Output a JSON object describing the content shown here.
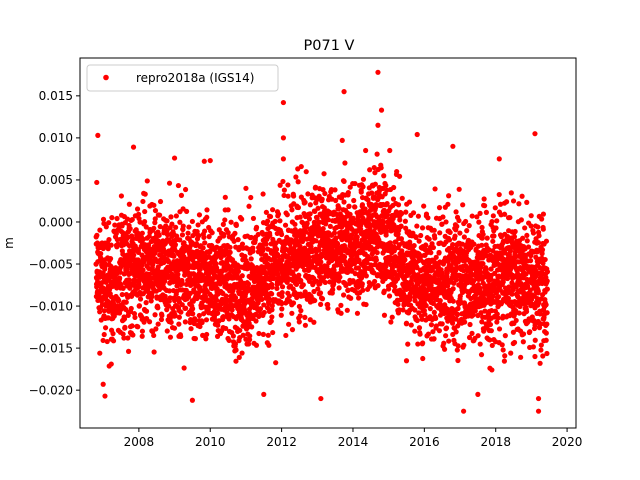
{
  "chart_data": {
    "type": "scatter",
    "title": "P071 V",
    "xlabel": "",
    "ylabel": "m",
    "xlim": [
      2006.35,
      2020.25
    ],
    "ylim": [
      -0.0245,
      0.0195
    ],
    "x_ticks": [
      2008,
      2010,
      2012,
      2014,
      2016,
      2018,
      2020
    ],
    "x_tick_labels": [
      "2008",
      "2010",
      "2012",
      "2014",
      "2016",
      "2018",
      "2020"
    ],
    "y_ticks": [
      -0.02,
      -0.015,
      -0.01,
      -0.005,
      0.0,
      0.005,
      0.01,
      0.015
    ],
    "y_tick_labels": [
      "−0.020",
      "−0.015",
      "−0.010",
      "−0.005",
      "0.000",
      "0.005",
      "0.010",
      "0.015"
    ],
    "grid": false,
    "legend_position": "top-left",
    "series": [
      {
        "name": "repro2018a (IGS14)",
        "color": "#ff0000",
        "marker": "circle",
        "points_are_approximate": true,
        "x_range": [
          2006.8,
          2019.45
        ],
        "baseline_by_year": [
          [
            2006.8,
            -0.007
          ],
          [
            2008.0,
            -0.006
          ],
          [
            2009.0,
            -0.0055
          ],
          [
            2010.0,
            -0.0065
          ],
          [
            2011.0,
            -0.0085
          ],
          [
            2012.0,
            -0.0045
          ],
          [
            2013.0,
            -0.003
          ],
          [
            2014.0,
            -0.003
          ],
          [
            2014.8,
            -0.001
          ],
          [
            2015.5,
            -0.006
          ],
          [
            2016.5,
            -0.0065
          ],
          [
            2017.5,
            -0.0075
          ],
          [
            2018.5,
            -0.0065
          ],
          [
            2019.45,
            -0.008
          ]
        ],
        "notable_points": [
          [
            2006.85,
            0.0103
          ],
          [
            2006.82,
            0.0047
          ],
          [
            2007.0,
            -0.0193
          ],
          [
            2007.05,
            -0.0207
          ],
          [
            2007.85,
            0.0089
          ],
          [
            2009.0,
            0.0076
          ],
          [
            2009.5,
            -0.0212
          ],
          [
            2010.0,
            0.0073
          ],
          [
            2011.0,
            0.004
          ],
          [
            2011.5,
            -0.0205
          ],
          [
            2012.05,
            0.0142
          ],
          [
            2012.05,
            0.01
          ],
          [
            2012.05,
            0.0075
          ],
          [
            2013.1,
            -0.021
          ],
          [
            2013.75,
            0.0155
          ],
          [
            2013.7,
            0.0097
          ],
          [
            2014.7,
            0.0178
          ],
          [
            2014.8,
            0.0133
          ],
          [
            2014.7,
            0.0115
          ],
          [
            2015.5,
            -0.0165
          ],
          [
            2015.8,
            0.0104
          ],
          [
            2016.8,
            0.009
          ],
          [
            2017.1,
            -0.0225
          ],
          [
            2017.5,
            -0.0205
          ],
          [
            2018.1,
            0.0075
          ],
          [
            2018.5,
            0.0025
          ],
          [
            2019.1,
            0.0105
          ],
          [
            2019.2,
            -0.0225
          ],
          [
            2019.2,
            -0.021
          ],
          [
            2019.1,
            -0.016
          ]
        ]
      }
    ]
  }
}
